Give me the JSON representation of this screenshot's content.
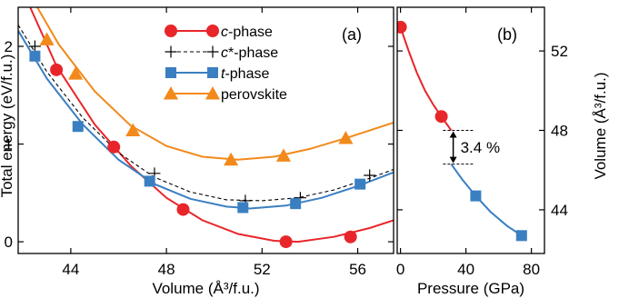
{
  "chart_data": [
    {
      "panel": "(a)",
      "type": "line",
      "xlabel": "Volume (Å³/f.u.)",
      "ylabel": "Total energy (eV/f.u.)",
      "xlim": [
        41.8,
        57.5
      ],
      "ylim": [
        -0.12,
        2.4
      ],
      "xticks": [
        44,
        48,
        52,
        56
      ],
      "yticks": [
        0,
        1,
        2
      ],
      "legend_position": "top-center",
      "series": [
        {
          "name": "c-phase",
          "name_parts": [
            "c",
            "-phase"
          ],
          "marker": "circle",
          "color": "#e8262a",
          "line": "solid",
          "points": [
            [
              43.4,
              1.76
            ],
            [
              45.8,
              0.97
            ],
            [
              48.7,
              0.33
            ],
            [
              53.0,
              0.0
            ],
            [
              55.7,
              0.05
            ]
          ],
          "curve": [
            [
              42.3,
              2.4
            ],
            [
              43.4,
              1.8
            ],
            [
              45.0,
              1.2
            ],
            [
              46.5,
              0.78
            ],
            [
              48.0,
              0.45
            ],
            [
              49.5,
              0.22
            ],
            [
              51.0,
              0.08
            ],
            [
              52.5,
              0.01
            ],
            [
              53.5,
              0.0
            ],
            [
              55.0,
              0.05
            ],
            [
              56.5,
              0.14
            ],
            [
              57.5,
              0.22
            ]
          ]
        },
        {
          "name": "c*-phase",
          "name_parts": [
            "c",
            "*-phase"
          ],
          "marker": "plus",
          "color": "#000000",
          "line": "dashed",
          "points": [
            [
              42.5,
              2.0
            ],
            [
              47.5,
              0.7
            ],
            [
              51.3,
              0.42
            ],
            [
              53.6,
              0.45
            ],
            [
              56.5,
              0.68
            ]
          ],
          "curve": [
            [
              41.8,
              2.22
            ],
            [
              43.0,
              1.74
            ],
            [
              44.5,
              1.27
            ],
            [
              46.0,
              0.91
            ],
            [
              47.5,
              0.66
            ],
            [
              49.0,
              0.51
            ],
            [
              50.5,
              0.43
            ],
            [
              52.0,
              0.42
            ],
            [
              53.5,
              0.45
            ],
            [
              55.0,
              0.53
            ],
            [
              56.5,
              0.65
            ],
            [
              57.5,
              0.74
            ]
          ]
        },
        {
          "name": "t-phase",
          "name_parts": [
            "t",
            "-phase"
          ],
          "marker": "square",
          "color": "#3a7fc1",
          "line": "solid",
          "points": [
            [
              42.5,
              1.9
            ],
            [
              44.3,
              1.18
            ],
            [
              47.3,
              0.62
            ],
            [
              51.2,
              0.35
            ],
            [
              53.4,
              0.39
            ],
            [
              56.1,
              0.59
            ]
          ],
          "curve": [
            [
              41.8,
              2.16
            ],
            [
              43.0,
              1.67
            ],
            [
              44.5,
              1.2
            ],
            [
              46.0,
              0.84
            ],
            [
              47.5,
              0.59
            ],
            [
              49.0,
              0.44
            ],
            [
              50.5,
              0.36
            ],
            [
              51.5,
              0.34
            ],
            [
              53.0,
              0.37
            ],
            [
              54.5,
              0.45
            ],
            [
              56.0,
              0.57
            ],
            [
              57.5,
              0.71
            ]
          ]
        },
        {
          "name": "perovskite",
          "name_parts": [
            "perovskite",
            ""
          ],
          "marker": "triangle",
          "color": "#f28a1b",
          "line": "solid",
          "points": [
            [
              43.0,
              2.07
            ],
            [
              44.2,
              1.72
            ],
            [
              46.6,
              1.14
            ],
            [
              50.7,
              0.84
            ],
            [
              52.9,
              0.88
            ],
            [
              55.5,
              1.06
            ]
          ],
          "curve": [
            [
              42.6,
              2.4
            ],
            [
              43.5,
              2.02
            ],
            [
              45.0,
              1.54
            ],
            [
              46.5,
              1.19
            ],
            [
              48.0,
              0.98
            ],
            [
              49.5,
              0.87
            ],
            [
              51.0,
              0.84
            ],
            [
              52.5,
              0.87
            ],
            [
              54.0,
              0.95
            ],
            [
              55.5,
              1.06
            ],
            [
              57.5,
              1.22
            ]
          ]
        }
      ]
    },
    {
      "panel": "(b)",
      "type": "line",
      "xlabel": "Pressure (GPa)",
      "ylabel": "Volume (Å³/f.u.)",
      "xlim": [
        -2,
        88
      ],
      "ylim": [
        41.8,
        54.2
      ],
      "xticks": [
        0,
        40,
        80
      ],
      "yticks": [
        44,
        48,
        52
      ],
      "annotation": "3.4 %",
      "annotation_range": [
        46.3,
        48.0
      ],
      "series": [
        {
          "name": "c-phase",
          "marker": "circle",
          "color": "#e8262a",
          "points": [
            [
              0,
              53.2
            ],
            [
              25,
              48.7
            ]
          ],
          "curve": [
            [
              0,
              53.2
            ],
            [
              5,
              52.0
            ],
            [
              10,
              50.9
            ],
            [
              15,
              50.0
            ],
            [
              20,
              49.3
            ],
            [
              25,
              48.7
            ],
            [
              31,
              48.0
            ]
          ]
        },
        {
          "name": "t-phase",
          "marker": "square",
          "color": "#3a7fc1",
          "points": [
            [
              46,
              44.7
            ],
            [
              74,
              42.7
            ]
          ],
          "curve": [
            [
              31,
              46.3
            ],
            [
              38,
              45.5
            ],
            [
              46,
              44.7
            ],
            [
              55,
              43.9
            ],
            [
              65,
              43.2
            ],
            [
              74,
              42.7
            ]
          ]
        }
      ]
    }
  ]
}
